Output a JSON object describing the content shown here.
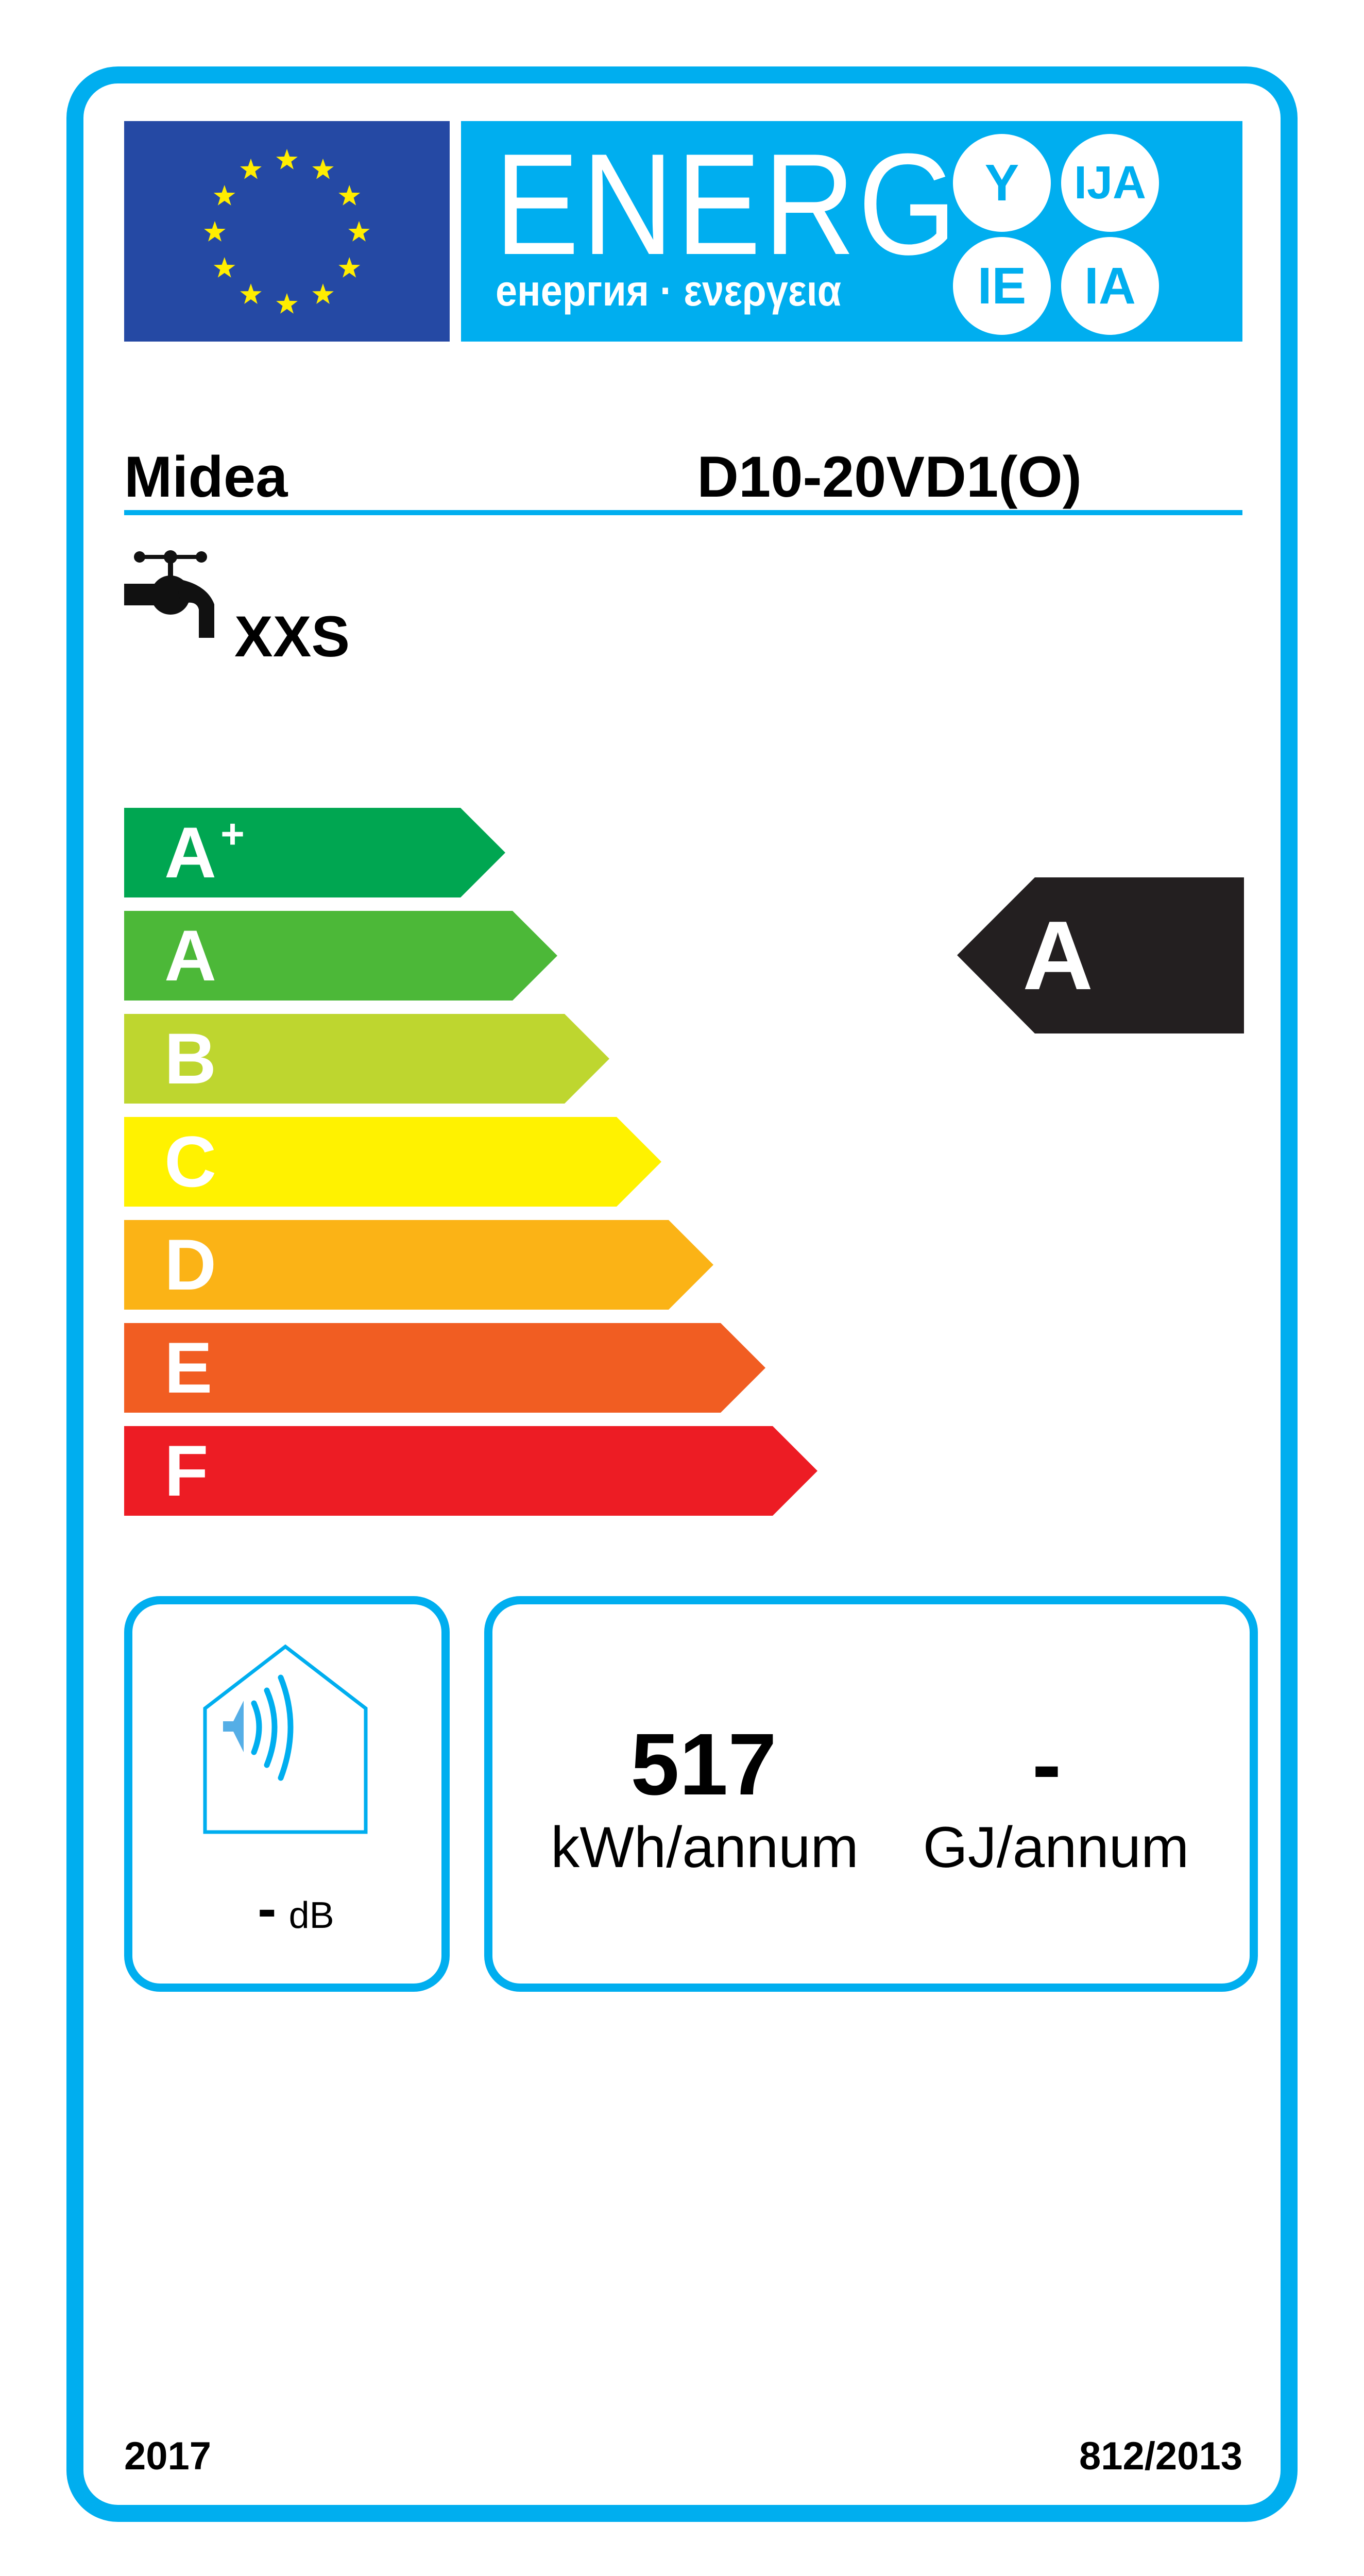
{
  "header": {
    "title": "ENERG",
    "subtitle": "енергия · ενεργεια",
    "suffixes": [
      "Y",
      "IJA",
      "IE",
      "IA"
    ],
    "flag_icon": "eu-flag-icon"
  },
  "supplier": "Midea",
  "model": "D10-20VD1(O)",
  "load_profile": {
    "icon": "tap-icon",
    "value": "XXS"
  },
  "scale": [
    {
      "label": "A",
      "sup": "+",
      "color": "#00a651"
    },
    {
      "label": "A",
      "sup": "",
      "color": "#4cb838"
    },
    {
      "label": "B",
      "sup": "",
      "color": "#bed62f"
    },
    {
      "label": "C",
      "sup": "",
      "color": "#fff200"
    },
    {
      "label": "D",
      "sup": "",
      "color": "#fbb316"
    },
    {
      "label": "E",
      "sup": "",
      "color": "#f15d22"
    },
    {
      "label": "F",
      "sup": "",
      "color": "#ed1c24"
    }
  ],
  "rating": {
    "class": "A",
    "color": "#231f20"
  },
  "noise": {
    "icon": "house-sound-icon",
    "value": "-",
    "unit": "dB"
  },
  "consumption": {
    "electricity_value": "517",
    "electricity_unit": "kWh/annum",
    "fuel_value": "-",
    "fuel_unit": "GJ/annum"
  },
  "footer": {
    "year": "2017",
    "regulation": "812/2013"
  },
  "colors": {
    "frame": "#00aeef",
    "flag": "#2549a4",
    "stars": "#ffed00"
  }
}
